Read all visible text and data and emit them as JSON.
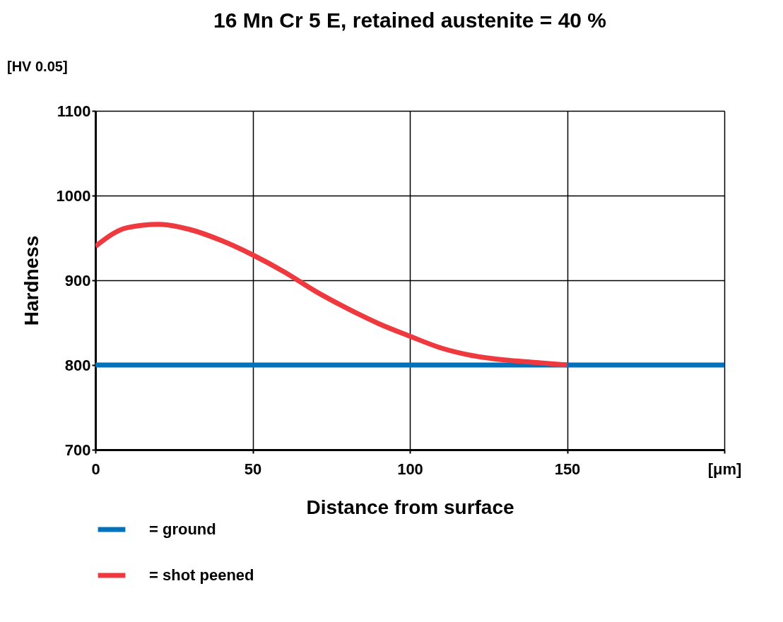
{
  "chart_data": {
    "type": "line",
    "title": "16 Mn Cr 5 E, retained austenite = 40 %",
    "xlabel": "Distance from surface",
    "ylabel": "Hardness",
    "annotations": [
      "[HV 0.05]"
    ],
    "xlim": [
      0,
      200
    ],
    "xticks": [
      0,
      50,
      100,
      150,
      {
        "value": 200,
        "label": "[μm]"
      }
    ],
    "ylim": [
      700,
      1100
    ],
    "yticks": [
      700,
      800,
      900,
      1000,
      1100
    ],
    "grid": true,
    "legend": "bottom",
    "line_style": "solid",
    "series": [
      {
        "name": "= ground",
        "color": "#0072bb",
        "x": [
          0,
          200
        ],
        "values": [
          800,
          800
        ]
      },
      {
        "name": "= shot peened",
        "color": "#ee3a3f",
        "x": [
          0,
          10,
          20,
          30,
          40,
          50,
          60,
          70,
          80,
          90,
          100,
          110,
          120,
          130,
          140,
          150
        ],
        "values": [
          940,
          962,
          966,
          960,
          947,
          930,
          910,
          887,
          867,
          849,
          834,
          820,
          811,
          806,
          803,
          800
        ]
      }
    ]
  }
}
